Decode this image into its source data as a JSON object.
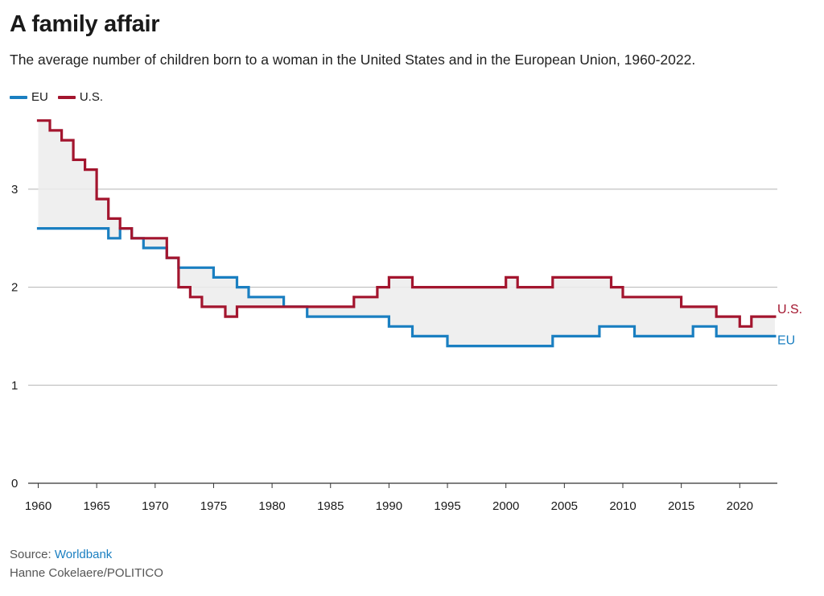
{
  "title": "A family affair",
  "subtitle": "The average number of children born to a woman in the United States and in the European Union, 1960-2022.",
  "legend": [
    {
      "name": "EU",
      "color": "#1a7fc1"
    },
    {
      "name": "U.S.",
      "color": "#a3152e"
    }
  ],
  "footer": {
    "source_prefix": "Source: ",
    "source_link": "Worldbank",
    "credit": "Hanne Cokelaere/POLITICO"
  },
  "chart_data": {
    "type": "line",
    "step": true,
    "fill_between": true,
    "x_domain": [
      1960,
      2023
    ],
    "ylim": [
      0,
      3.7
    ],
    "x_ticks": [
      1960,
      1965,
      1970,
      1975,
      1980,
      1985,
      1990,
      1995,
      2000,
      2005,
      2010,
      2015,
      2020
    ],
    "y_ticks": [
      0,
      1,
      2,
      3
    ],
    "grid": true,
    "legend_position": "top-left",
    "end_labels": true,
    "series": [
      {
        "name": "EU",
        "color": "#1a7fc1",
        "x": [
          1960,
          1961,
          1962,
          1963,
          1964,
          1965,
          1966,
          1967,
          1968,
          1969,
          1970,
          1971,
          1972,
          1973,
          1974,
          1975,
          1976,
          1977,
          1978,
          1979,
          1980,
          1981,
          1982,
          1983,
          1984,
          1985,
          1986,
          1987,
          1988,
          1989,
          1990,
          1991,
          1992,
          1993,
          1994,
          1995,
          1996,
          1997,
          1998,
          1999,
          2000,
          2001,
          2002,
          2003,
          2004,
          2005,
          2006,
          2007,
          2008,
          2009,
          2010,
          2011,
          2012,
          2013,
          2014,
          2015,
          2016,
          2017,
          2018,
          2019,
          2020,
          2021,
          2022
        ],
        "values": [
          2.6,
          2.6,
          2.6,
          2.6,
          2.6,
          2.6,
          2.5,
          2.6,
          2.5,
          2.4,
          2.4,
          2.3,
          2.2,
          2.2,
          2.2,
          2.1,
          2.1,
          2.0,
          1.9,
          1.9,
          1.9,
          1.8,
          1.8,
          1.7,
          1.7,
          1.7,
          1.7,
          1.7,
          1.7,
          1.7,
          1.6,
          1.6,
          1.5,
          1.5,
          1.5,
          1.4,
          1.4,
          1.4,
          1.4,
          1.4,
          1.4,
          1.4,
          1.4,
          1.4,
          1.5,
          1.5,
          1.5,
          1.5,
          1.6,
          1.6,
          1.6,
          1.5,
          1.5,
          1.5,
          1.5,
          1.5,
          1.6,
          1.6,
          1.5,
          1.5,
          1.5,
          1.5,
          1.5
        ]
      },
      {
        "name": "U.S.",
        "color": "#a3152e",
        "x": [
          1960,
          1961,
          1962,
          1963,
          1964,
          1965,
          1966,
          1967,
          1968,
          1969,
          1970,
          1971,
          1972,
          1973,
          1974,
          1975,
          1976,
          1977,
          1978,
          1979,
          1980,
          1981,
          1982,
          1983,
          1984,
          1985,
          1986,
          1987,
          1988,
          1989,
          1990,
          1991,
          1992,
          1993,
          1994,
          1995,
          1996,
          1997,
          1998,
          1999,
          2000,
          2001,
          2002,
          2003,
          2004,
          2005,
          2006,
          2007,
          2008,
          2009,
          2010,
          2011,
          2012,
          2013,
          2014,
          2015,
          2016,
          2017,
          2018,
          2019,
          2020,
          2021,
          2022
        ],
        "values": [
          3.7,
          3.6,
          3.5,
          3.3,
          3.2,
          2.9,
          2.7,
          2.6,
          2.5,
          2.5,
          2.5,
          2.3,
          2.0,
          1.9,
          1.8,
          1.8,
          1.7,
          1.8,
          1.8,
          1.8,
          1.8,
          1.8,
          1.8,
          1.8,
          1.8,
          1.8,
          1.8,
          1.9,
          1.9,
          2.0,
          2.1,
          2.1,
          2.0,
          2.0,
          2.0,
          2.0,
          2.0,
          2.0,
          2.0,
          2.0,
          2.1,
          2.0,
          2.0,
          2.0,
          2.1,
          2.1,
          2.1,
          2.1,
          2.1,
          2.0,
          1.9,
          1.9,
          1.9,
          1.9,
          1.9,
          1.8,
          1.8,
          1.8,
          1.7,
          1.7,
          1.6,
          1.7,
          1.7
        ]
      }
    ]
  }
}
